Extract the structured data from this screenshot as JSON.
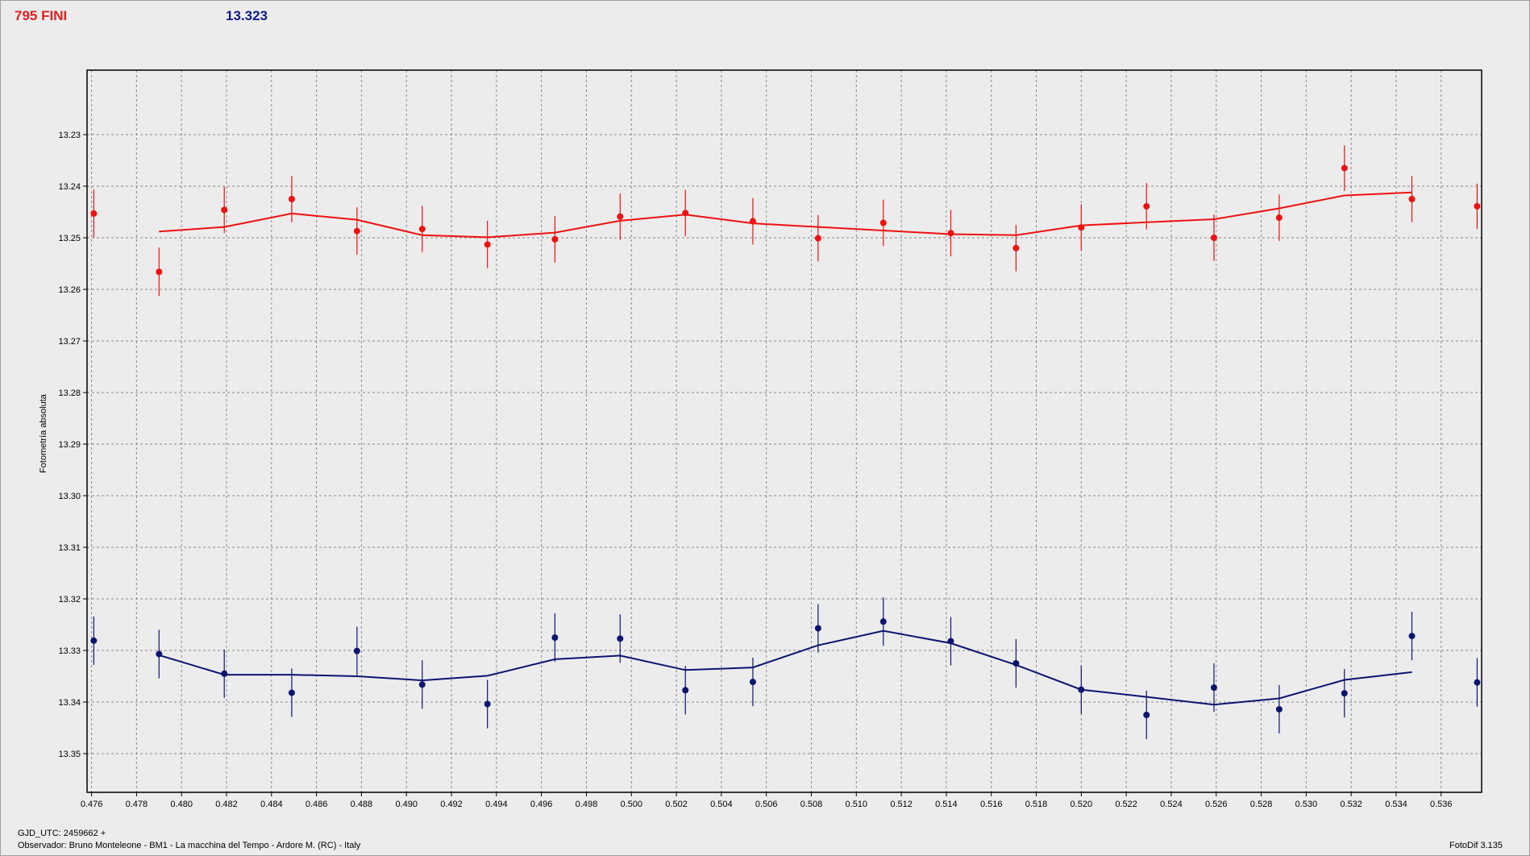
{
  "header": {
    "left_label": "795 FINI",
    "right_value": "13.323"
  },
  "footer": {
    "gjd": "GJD_UTC: 2459662 +",
    "observer": "Observador: Bruno Monteleone - BM1 - La macchina del Tempo - Ardore M. (RC) - Italy",
    "software": "FotoDif 3.135"
  },
  "colors": {
    "red_series": "#ee1111",
    "blue_series": "#0d1470",
    "grid": "#8a8a8a",
    "plot_bg": "#ececec"
  },
  "chart_data": {
    "type": "line",
    "title": "",
    "xlabel": "",
    "ylabel": "Fotometría absoluta",
    "xlim": [
      0.4758,
      0.5378
    ],
    "ylim": [
      13.2175,
      13.3575
    ],
    "y_inverted": true,
    "grid": true,
    "x_ticks": [
      "0.476",
      "0.478",
      "0.480",
      "0.482",
      "0.484",
      "0.486",
      "0.488",
      "0.490",
      "0.492",
      "0.494",
      "0.496",
      "0.498",
      "0.500",
      "0.502",
      "0.504",
      "0.506",
      "0.508",
      "0.510",
      "0.512",
      "0.514",
      "0.516",
      "0.518",
      "0.520",
      "0.522",
      "0.524",
      "0.526",
      "0.528",
      "0.530",
      "0.532",
      "0.534",
      "0.536"
    ],
    "y_ticks": [
      "13.23",
      "13.24",
      "13.25",
      "13.26",
      "13.27",
      "13.28",
      "13.29",
      "13.30",
      "13.31",
      "13.32",
      "13.33",
      "13.34",
      "13.35"
    ],
    "series": [
      {
        "color": "#ee1111",
        "points": [
          {
            "x": 0.4761,
            "y": 13.2453,
            "err": 0.0047
          },
          {
            "x": 0.479,
            "y": 13.2566,
            "err": 0.0047
          },
          {
            "x": 0.4819,
            "y": 13.2446,
            "err": 0.0045
          },
          {
            "x": 0.4849,
            "y": 13.2425,
            "err": 0.0045
          },
          {
            "x": 0.4878,
            "y": 13.2487,
            "err": 0.0046
          },
          {
            "x": 0.4907,
            "y": 13.2483,
            "err": 0.0045
          },
          {
            "x": 0.4936,
            "y": 13.2513,
            "err": 0.0046
          },
          {
            "x": 0.4966,
            "y": 13.2503,
            "err": 0.0045
          },
          {
            "x": 0.4995,
            "y": 13.2459,
            "err": 0.0045
          },
          {
            "x": 0.5024,
            "y": 13.2452,
            "err": 0.0045
          },
          {
            "x": 0.5054,
            "y": 13.2468,
            "err": 0.0045
          },
          {
            "x": 0.5083,
            "y": 13.2501,
            "err": 0.0045
          },
          {
            "x": 0.5112,
            "y": 13.2471,
            "err": 0.0045
          },
          {
            "x": 0.5142,
            "y": 13.2491,
            "err": 0.0045
          },
          {
            "x": 0.5171,
            "y": 13.252,
            "err": 0.0045
          },
          {
            "x": 0.52,
            "y": 13.248,
            "err": 0.0045
          },
          {
            "x": 0.5229,
            "y": 13.2439,
            "err": 0.0045
          },
          {
            "x": 0.5259,
            "y": 13.25,
            "err": 0.0045
          },
          {
            "x": 0.5288,
            "y": 13.2461,
            "err": 0.0045
          },
          {
            "x": 0.5317,
            "y": 13.2365,
            "err": 0.0044
          },
          {
            "x": 0.5347,
            "y": 13.2425,
            "err": 0.0045
          },
          {
            "x": 0.5376,
            "y": 13.2439,
            "err": 0.0044
          }
        ],
        "fit": [
          {
            "x": 0.479,
            "y": 13.2488
          },
          {
            "x": 0.4819,
            "y": 13.2479
          },
          {
            "x": 0.4849,
            "y": 13.2453
          },
          {
            "x": 0.4878,
            "y": 13.2465
          },
          {
            "x": 0.4907,
            "y": 13.2495
          },
          {
            "x": 0.4936,
            "y": 13.2499
          },
          {
            "x": 0.4966,
            "y": 13.249
          },
          {
            "x": 0.4995,
            "y": 13.2467
          },
          {
            "x": 0.5024,
            "y": 13.2455
          },
          {
            "x": 0.5054,
            "y": 13.2472
          },
          {
            "x": 0.5083,
            "y": 13.2479
          },
          {
            "x": 0.5112,
            "y": 13.2486
          },
          {
            "x": 0.5142,
            "y": 13.2493
          },
          {
            "x": 0.5171,
            "y": 13.2495
          },
          {
            "x": 0.52,
            "y": 13.2476
          },
          {
            "x": 0.5229,
            "y": 13.247
          },
          {
            "x": 0.5259,
            "y": 13.2464
          },
          {
            "x": 0.5288,
            "y": 13.2443
          },
          {
            "x": 0.5317,
            "y": 13.2418
          },
          {
            "x": 0.5347,
            "y": 13.2412
          }
        ]
      },
      {
        "color": "#0d1470",
        "points": [
          {
            "x": 0.4761,
            "y": 13.3281,
            "err": 0.0047
          },
          {
            "x": 0.479,
            "y": 13.3307,
            "err": 0.0047
          },
          {
            "x": 0.4819,
            "y": 13.3345,
            "err": 0.0047
          },
          {
            "x": 0.4849,
            "y": 13.3382,
            "err": 0.0047
          },
          {
            "x": 0.4878,
            "y": 13.3301,
            "err": 0.0047
          },
          {
            "x": 0.4907,
            "y": 13.3366,
            "err": 0.0047
          },
          {
            "x": 0.4936,
            "y": 13.3404,
            "err": 0.0047
          },
          {
            "x": 0.4966,
            "y": 13.3275,
            "err": 0.0047
          },
          {
            "x": 0.4995,
            "y": 13.3277,
            "err": 0.0047
          },
          {
            "x": 0.5024,
            "y": 13.3377,
            "err": 0.0047
          },
          {
            "x": 0.5054,
            "y": 13.3361,
            "err": 0.0047
          },
          {
            "x": 0.5083,
            "y": 13.3257,
            "err": 0.0047
          },
          {
            "x": 0.5112,
            "y": 13.3244,
            "err": 0.0047
          },
          {
            "x": 0.5142,
            "y": 13.3282,
            "err": 0.0047
          },
          {
            "x": 0.5171,
            "y": 13.3325,
            "err": 0.0047
          },
          {
            "x": 0.52,
            "y": 13.3376,
            "err": 0.0047
          },
          {
            "x": 0.5229,
            "y": 13.3425,
            "err": 0.0047
          },
          {
            "x": 0.5259,
            "y": 13.3372,
            "err": 0.0047
          },
          {
            "x": 0.5288,
            "y": 13.3414,
            "err": 0.0047
          },
          {
            "x": 0.5317,
            "y": 13.3383,
            "err": 0.0047
          },
          {
            "x": 0.5347,
            "y": 13.3272,
            "err": 0.0047
          },
          {
            "x": 0.5376,
            "y": 13.3362,
            "err": 0.0047
          }
        ],
        "fit": [
          {
            "x": 0.479,
            "y": 13.3309
          },
          {
            "x": 0.4819,
            "y": 13.3347
          },
          {
            "x": 0.4849,
            "y": 13.3347
          },
          {
            "x": 0.4878,
            "y": 13.335
          },
          {
            "x": 0.4907,
            "y": 13.3358
          },
          {
            "x": 0.4936,
            "y": 13.3349
          },
          {
            "x": 0.4966,
            "y": 13.3317
          },
          {
            "x": 0.4995,
            "y": 13.331
          },
          {
            "x": 0.5024,
            "y": 13.3338
          },
          {
            "x": 0.5054,
            "y": 13.3333
          },
          {
            "x": 0.5083,
            "y": 13.329
          },
          {
            "x": 0.5112,
            "y": 13.3262
          },
          {
            "x": 0.5142,
            "y": 13.3286
          },
          {
            "x": 0.5171,
            "y": 13.3328
          },
          {
            "x": 0.52,
            "y": 13.3376
          },
          {
            "x": 0.5229,
            "y": 13.339
          },
          {
            "x": 0.5259,
            "y": 13.3405
          },
          {
            "x": 0.5288,
            "y": 13.3393
          },
          {
            "x": 0.5317,
            "y": 13.3357
          },
          {
            "x": 0.5347,
            "y": 13.3342
          }
        ]
      }
    ]
  }
}
